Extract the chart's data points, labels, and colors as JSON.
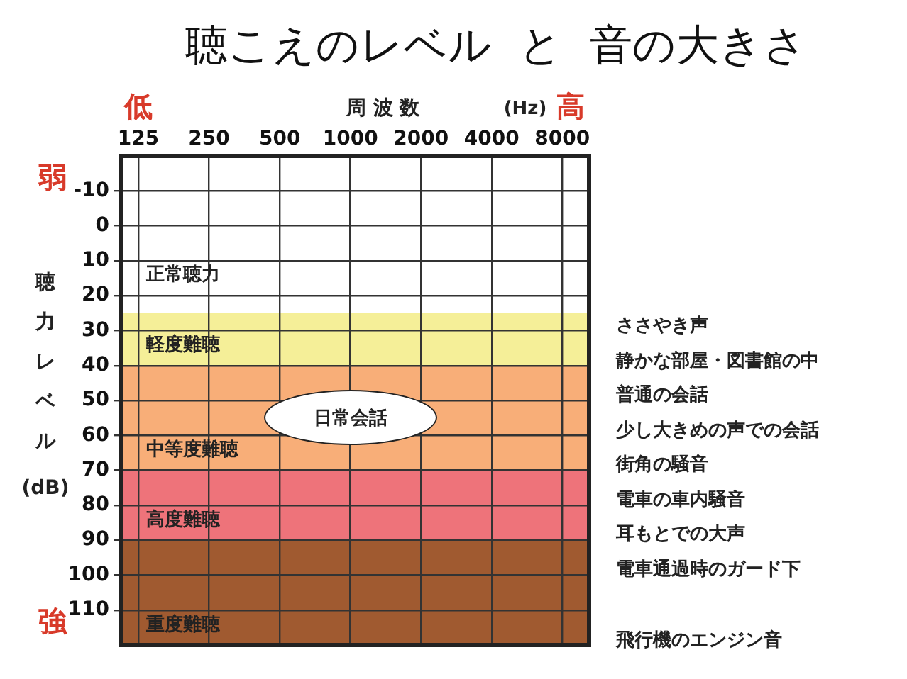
{
  "chart_data": {
    "type": "line",
    "title": "聴こえのレベル  と  音の大きさ",
    "xlabel": "周 波 数",
    "ylabel": "聴力レベル(dB)",
    "log": "x",
    "xlim": [
      105,
      10400
    ],
    "xticks": [
      125,
      250,
      500,
      1000,
      2000,
      4000,
      8000
    ],
    "ylim": [
      120,
      -20
    ],
    "yticks": [
      -10,
      0,
      10,
      20,
      30,
      40,
      50,
      60,
      70,
      80,
      90,
      100,
      110
    ],
    "grid": true,
    "legend": false,
    "bands": [
      {
        "axis": "y",
        "from": 25,
        "to": 40,
        "label": "軽度難聴",
        "color": "#f5ef98"
      },
      {
        "axis": "y",
        "from": 40,
        "to": 70,
        "label": "中等度難聴",
        "color": "#f8ae78"
      },
      {
        "axis": "y",
        "from": 70,
        "to": 90,
        "label": "高度難聴",
        "color": "#ee737a"
      },
      {
        "axis": "y",
        "from": 90,
        "to": 120,
        "label": "重度難聴",
        "color": "#a05a30"
      }
    ],
    "annotations": [
      "低",
      "高",
      "弱",
      "強",
      "(Hz)",
      "正常聴力",
      "日常会話",
      "ささやき声",
      "静かな部屋・図書館の中",
      "普通の会話",
      "少し大きめの声での会話",
      "街角の騒音",
      "電車の車内騒音",
      "耳もとでの大声",
      "電車通過時のガード下",
      "飛行機のエンジン音"
    ]
  }
}
